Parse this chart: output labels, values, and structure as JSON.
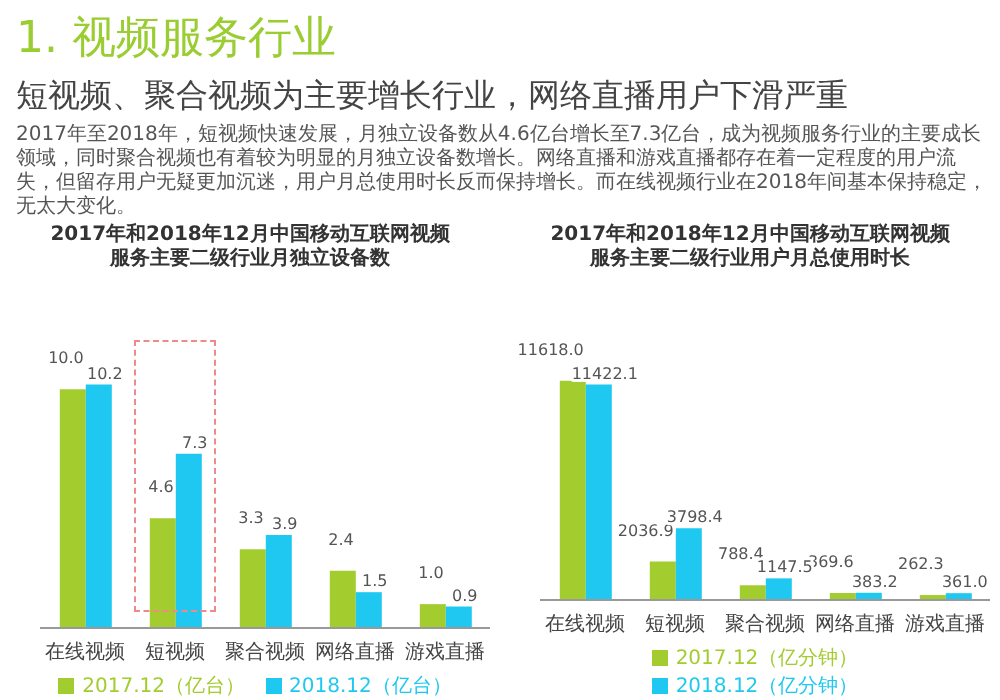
{
  "chart_data": [
    {
      "type": "bar",
      "title": "2017年和2018年12月中国移动互联网视频服务主要二级行业月独立设备数",
      "annotations": [
        "1. 视频服务行业",
        "短视频、聚合视频为主要增长行业，网络直播用户下滑严重",
        "2017年至2018年，短视频快速发展，月独立设备数从4.6亿台增长至7.3亿台，成为视频服务行业的主要成长领域，同时聚合视频也有着较为明显的月独立设备数增长。网络直播和游戏直播都存在着一定程度的用户流失，但留存用户无疑更加沉迷，用户月总使用时长反而保持增长。而在线视频行业在2018年间基本保持稳定，无太大变化。"
      ],
      "categories": [
        "在线视频",
        "短视频",
        "聚合视频",
        "网络直播",
        "游戏直播"
      ],
      "series": [
        {
          "name": "2017.12（亿台）",
          "color": "#a3cc2f",
          "values": [
            10.0,
            4.6,
            3.3,
            2.4,
            1.0
          ],
          "value_labels": [
            "10.0",
            "4.6",
            "3.3",
            "2.4",
            "1.0"
          ]
        },
        {
          "name": "2018.12（亿台）",
          "color": "#1ec8f0",
          "values": [
            10.2,
            7.3,
            3.9,
            1.5,
            0.9
          ],
          "value_labels": [
            "10.2",
            "7.3",
            "3.9",
            "1.5",
            "0.9"
          ]
        }
      ],
      "legend": "bottom",
      "grid": false
    },
    {
      "type": "bar",
      "title": "2017年和2018年12月中国移动互联网视频服务主要二级行业用户月总使用时长",
      "categories": [
        "在线视频",
        "短视频",
        "聚合视频",
        "网络直播",
        "游戏直播"
      ],
      "series": [
        {
          "name": "2017.12（亿分钟）",
          "color": "#a3cc2f",
          "values": [
            11618.0,
            2036.9,
            788.4,
            369.6,
            262.3
          ],
          "value_labels": [
            "11618.0",
            "2036.9",
            "788.4",
            "369.6",
            "262.3"
          ]
        },
        {
          "name": "2018.12（亿分钟）",
          "color": "#1ec8f0",
          "values": [
            11422.1,
            3798.4,
            1147.5,
            383.2,
            361.0
          ],
          "value_labels": [
            "11422.1",
            "3798.4",
            "1147.5",
            "383.2",
            "361.0"
          ]
        }
      ],
      "legend": "bottom",
      "grid": false
    }
  ]
}
